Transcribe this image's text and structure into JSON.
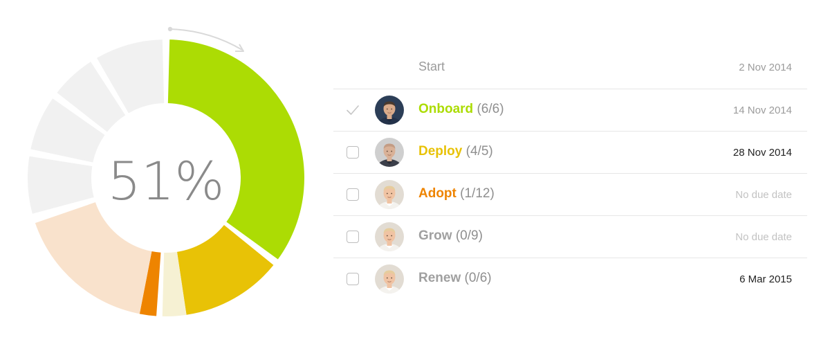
{
  "progress": {
    "percent_label": "51%",
    "percent": 51
  },
  "colors": {
    "onboard": "#acdc04",
    "deploy": "#e8c206",
    "deploy_light": "#f6f1d3",
    "adopt": "#ee8400",
    "adopt_light": "#f9e2cc",
    "empty": "#f1f1f1",
    "grey_text": "#a0a0a0"
  },
  "chart_data": {
    "type": "pie",
    "style": "donut",
    "center_label": "51%",
    "segments": [
      {
        "stage": "Onboard",
        "done": 6,
        "total": 6
      },
      {
        "stage": "Deploy",
        "done": 4,
        "total": 5
      },
      {
        "stage": "Adopt",
        "done": 1,
        "total": 12
      },
      {
        "stage": "Grow",
        "done": 0,
        "total": 9
      },
      {
        "stage": "Renew",
        "done": 0,
        "total": 6
      }
    ]
  },
  "timeline": {
    "start": {
      "label": "Start",
      "date": "2 Nov 2014"
    },
    "stages": [
      {
        "name": "Onboard",
        "count": "(6/6)",
        "date": "14 Nov 2014",
        "completed": true,
        "color": "#acdc04",
        "date_style": "normal",
        "avatar_icon": "person-dark-hair-icon"
      },
      {
        "name": "Deploy",
        "count": "(4/5)",
        "date": "28 Nov 2014",
        "completed": false,
        "color": "#e8c206",
        "date_style": "dark",
        "avatar_icon": "person-bald-icon"
      },
      {
        "name": "Adopt",
        "count": "(1/12)",
        "date": "No due date",
        "completed": false,
        "color": "#ee8400",
        "date_style": "muted",
        "avatar_icon": "person-fair-hair-icon"
      },
      {
        "name": "Grow",
        "count": "(0/9)",
        "date": "No due date",
        "completed": false,
        "color": "#a0a0a0",
        "date_style": "muted",
        "avatar_icon": "person-fair-hair-icon"
      },
      {
        "name": "Renew",
        "count": "(0/6)",
        "date": "6 Mar 2015",
        "completed": false,
        "color": "#a0a0a0",
        "date_style": "dark",
        "avatar_icon": "person-fair-hair-icon"
      }
    ]
  }
}
